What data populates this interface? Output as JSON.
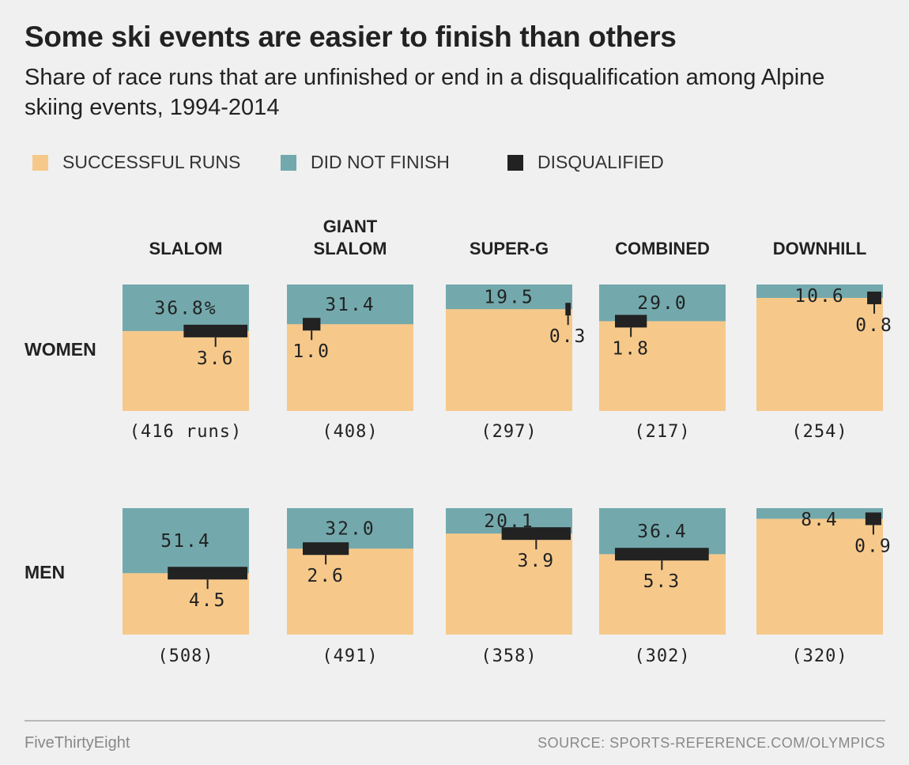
{
  "title": "Some ski events are easier to finish than others",
  "subtitle": "Share of race runs that are unfinished or end in a disqualification among Alpine skiing events, 1994-2014",
  "legend": [
    {
      "label": "SUCCESSFUL RUNS",
      "color": "#f6c98b"
    },
    {
      "label": "DID NOT FINISH",
      "color": "#73a9ad"
    },
    {
      "label": "DISQUALIFIED",
      "color": "#222222"
    }
  ],
  "chart_data": {
    "type": "area",
    "columns": [
      "SLALOM",
      "GIANT SLALOM",
      "SUPER-G",
      "COMBINED",
      "DOWNHILL"
    ],
    "rows": [
      "WOMEN",
      "MEN"
    ],
    "cells": [
      [
        {
          "dnf": 36.8,
          "dnf_label": "36.8%",
          "dq": 3.6,
          "dq_label": "3.6",
          "runs": 416,
          "runs_label": "(416 runs)"
        },
        {
          "dnf": 31.4,
          "dnf_label": "31.4",
          "dq": 1.0,
          "dq_label": "1.0",
          "runs": 408,
          "runs_label": "(408)"
        },
        {
          "dnf": 19.5,
          "dnf_label": "19.5",
          "dq": 0.3,
          "dq_label": "0.3",
          "runs": 297,
          "runs_label": "(297)"
        },
        {
          "dnf": 29.0,
          "dnf_label": "29.0",
          "dq": 1.8,
          "dq_label": "1.8",
          "runs": 217,
          "runs_label": "(217)"
        },
        {
          "dnf": 10.6,
          "dnf_label": "10.6",
          "dq": 0.8,
          "dq_label": "0.8",
          "runs": 254,
          "runs_label": "(254)"
        }
      ],
      [
        {
          "dnf": 51.4,
          "dnf_label": "51.4",
          "dq": 4.5,
          "dq_label": "4.5",
          "runs": 508,
          "runs_label": "(508)"
        },
        {
          "dnf": 32.0,
          "dnf_label": "32.0",
          "dq": 2.6,
          "dq_label": "2.6",
          "runs": 491,
          "runs_label": "(491)"
        },
        {
          "dnf": 20.1,
          "dnf_label": "20.1",
          "dq": 3.9,
          "dq_label": "3.9",
          "runs": 358,
          "runs_label": "(358)"
        },
        {
          "dnf": 36.4,
          "dnf_label": "36.4",
          "dq": 5.3,
          "dq_label": "5.3",
          "runs": 302,
          "runs_label": "(302)"
        },
        {
          "dnf": 8.4,
          "dnf_label": "8.4",
          "dq": 0.9,
          "dq_label": "0.9",
          "runs": 320,
          "runs_label": "(320)"
        }
      ]
    ]
  },
  "footer": {
    "brand": "FiveThirtyEight",
    "source": "SOURCE: SPORTS-REFERENCE.COM/OLYMPICS"
  }
}
